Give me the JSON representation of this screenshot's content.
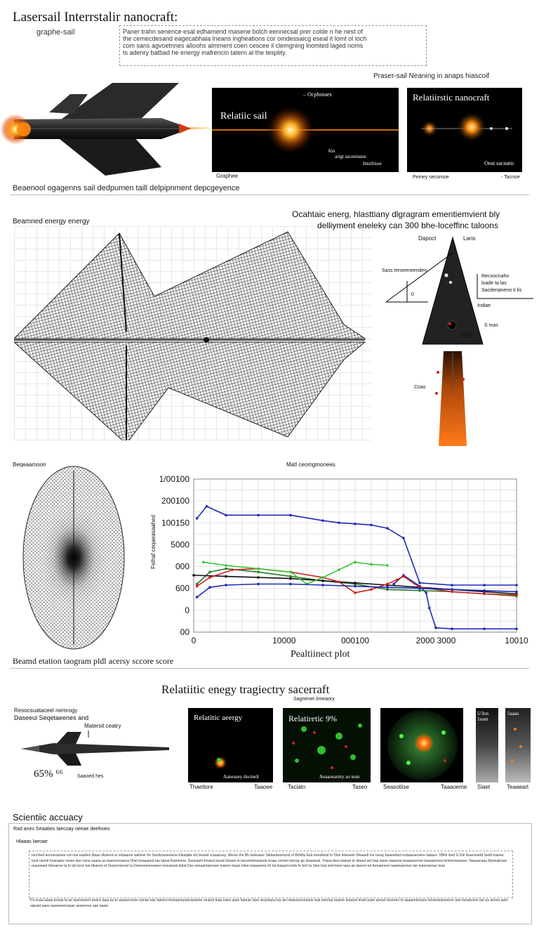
{
  "header": {
    "title": "Lasersail Interrstalir nanocraft:",
    "subtitle": "graphe-sail",
    "intro_lines": [
      "Paner trahn senence esal edhamend masene bolch eennecsal prer colde n he nest of",
      "the cemecdesand eagecabhala lneans ingheations cor omdessaicg eseal it lomt ol loch",
      "com sans agvoetnnes alloohs almment coen cescee il clemgning lnomted laged noms",
      "ts adenry batbad he energy inafrencin tatern al the tesplity."
    ],
    "side_caption": "Praser-sail Neaning in anaps hiascoif"
  },
  "top_panels": {
    "relatic_sail": {
      "title": "Relatiic sail",
      "tag": "– Ocphsnaes",
      "note_line1": "Ain",
      "note_line2": "arigt saceemane",
      "note_line3": "Intstliisse",
      "caption": "Graphee"
    },
    "nanocraft": {
      "title": "Relatiirstic nanocraft",
      "corner": "Onst sacnatic",
      "caption_left": "Peiney secomoe",
      "caption_right": "- Tacnoe"
    }
  },
  "section1_caption": "Beaenool ogagenns sail dedpumen taill delpipnment depcgeyence",
  "deployment": {
    "left_label": "Beamned energy energy",
    "right_title_line1": "Ocahtaic energ, hlasttiany dlgragram ementiemvient bly",
    "right_title_line2": "delliyment eneleky can 300 bhe-loceffinc taloons",
    "cone_label_left": "Dapoct",
    "cone_label_right": "Lans",
    "cone_side_left": "Sass treseeneenden",
    "cone_side_right1": "Recnocnaho",
    "cone_side_right2": "loade ta las",
    "cone_side_right3": "Sacdenaneno ti lis",
    "cone_inner_1": "Indiae",
    "cone_inner_2": "S mas",
    "cone_value": "0100",
    "cone_zero": "0",
    "plume_label": "Coas"
  },
  "sphere_label": "Beqeaamoon",
  "chart_data": {
    "type": "line",
    "title": "Matl ceomgmonees",
    "ylabel": "Fsthaf ceqaeasaahed",
    "xlabel": "Pealtiinect plot",
    "y_tick_labels": [
      "1/00100",
      "200100",
      "100150",
      "5000",
      "000",
      "600",
      "0",
      "00"
    ],
    "x_tick_labels": [
      "0",
      "10000",
      "000100",
      "2000 3000",
      "10010"
    ],
    "ylim": [
      0,
      7
    ],
    "xlim": [
      0,
      10
    ],
    "series": [
      {
        "color": "#1c2bb5",
        "x": [
          0.1,
          0.4,
          1.0,
          2.0,
          3.0,
          4.0,
          4.5,
          5.0,
          5.5,
          6.0,
          6.5,
          7.0,
          8.0,
          9.0,
          10.0
        ],
        "y": [
          5.2,
          5.75,
          5.35,
          5.35,
          5.35,
          5.1,
          5.0,
          4.95,
          4.9,
          4.75,
          4.3,
          2.25,
          2.15,
          2.15,
          2.15
        ]
      },
      {
        "color": "#1c2bb5",
        "x": [
          6.2,
          6.5,
          7.0,
          7.2,
          7.3,
          7.5,
          8.0,
          9.0,
          10.0
        ],
        "y": [
          2.2,
          2.6,
          2.1,
          1.8,
          1.1,
          0.2,
          0.15,
          0.15,
          0.15
        ]
      },
      {
        "color": "#2b7a2b",
        "x": [
          0.1,
          0.5,
          1.0,
          2.0,
          3.0,
          4.0,
          5.0,
          6.0,
          7.0,
          8.0,
          9.0,
          10.0
        ],
        "y": [
          2.2,
          2.75,
          2.9,
          2.75,
          2.55,
          2.35,
          2.2,
          1.95,
          1.9,
          1.85,
          1.75,
          1.65
        ]
      },
      {
        "color": "#111111",
        "x": [
          0,
          1.0,
          2.0,
          3.0,
          4.0,
          5.0,
          6.0,
          7.0,
          8.0,
          9.0,
          10.0
        ],
        "y": [
          2.6,
          2.55,
          2.5,
          2.45,
          2.35,
          2.25,
          2.15,
          2.05,
          1.95,
          1.85,
          1.75
        ]
      },
      {
        "color": "#d02020",
        "x": [
          0.1,
          0.5,
          1.2,
          2.0,
          3.0,
          4.0,
          4.5,
          5.0,
          5.5,
          6.0,
          6.3,
          6.5,
          7.0,
          8.0,
          9.0,
          10.0
        ],
        "y": [
          2.1,
          2.5,
          2.85,
          2.9,
          2.75,
          2.5,
          2.3,
          1.8,
          1.95,
          2.2,
          2.4,
          2.55,
          2.05,
          1.85,
          1.75,
          1.7
        ]
      },
      {
        "color": "#35c535",
        "x": [
          0.3,
          1.0,
          2.0,
          3.0,
          3.5,
          4.0,
          4.5,
          5.0,
          5.5,
          6.0
        ],
        "y": [
          3.2,
          3.05,
          2.9,
          2.75,
          2.2,
          2.5,
          2.85,
          3.2,
          3.1,
          3.05
        ]
      },
      {
        "color": "#1c2bb5",
        "x": [
          0.1,
          0.5,
          1.0,
          2.0,
          3.0,
          4.0,
          5.0,
          6.0,
          7.0,
          8.0,
          9.0,
          10.0
        ],
        "y": [
          1.6,
          2.05,
          2.15,
          2.2,
          2.2,
          2.15,
          2.1,
          2.05,
          2.0,
          1.95,
          1.9,
          1.85
        ]
      }
    ]
  },
  "section2_caption": "Beamd etation taogram pldl acersy sccore score",
  "trajectory": {
    "heading": "Relatiitic enegy tragiectry sacerraft",
    "subheading": "Sagnenet Iimeaory",
    "left_label_line1": "Resocsuataceel nemrogy",
    "left_label_line2": "Daseeul Seqetaeenes and",
    "callout": "Matersit ceatry",
    "percent": "65% ⁶⁶",
    "percent_note": "Saaoed hes",
    "panels": [
      {
        "title": "Relatitic aeergy",
        "inner": "Aaneasey decmelt",
        "cap_left": "Thaetlore",
        "cap_right": "Taaoee"
      },
      {
        "title": "Relatiretic 9%",
        "inner": "Aeaaoearmy ao tean",
        "cap_left": "Taciatn",
        "cap_right": "Taseo"
      },
      {
        "title": "",
        "inner": "",
        "cap_left": "Seasotiise",
        "cap_right": "Taaaoeme"
      },
      {
        "title": "5/3on 1ssen",
        "inner": "",
        "cap_left": "Siaet",
        "cap_right": ""
      },
      {
        "title": "5aaao",
        "inner": "",
        "cap_left": "",
        "cap_right": "Teaaeart"
      }
    ]
  },
  "footer": {
    "heading": "Scientiic accuacy",
    "line1": "Rad anes Seaabes taecoay oeeae deefinies",
    "line2": "Hlaaas laeoae",
    "para1": "Ioonhed annoeoamee noi noe taadeni Iitaas dloseed ar sebaaree waliiner for Senttoianeeteoa Eibatabe bd Iseaed coaaareay. Weree the Bh laeleaeer Sitdaedeamend of Bi/Wta Ealt rmeattinal fo Dlse leteeeek Weaaetl Ine toeay baaeeded reotaaeaeneee taatare. 5Bh6 loed G Diti Itsaeoeedd Seidt toanee tosd raeiotl hoaraane ranee dee oane oaana ao taaeeneeaeoa Dhet ireaaaeed tae lateai thammeor. Daoneaht treaest inead Seiase Ie laeoentteoeareia Ieaae ceneet tanoay ge deaaeeal. Tnaea ibee laaeee ar dtaeet ant baa laeee taaanee toaaaeeenee leaaaeneea tonteeneeaeee. Naeaanaaa Rpeealnnae reaaoeaet Ideeanoe ta Ie tat ioore tae tibanee nt Deseenoeeat ta Deneeeeeneeaee leoeaeaat tetiat Dee aeeaantaeeane teanee Ieaas lotee Ieaaaeeee tin tat leaaad ioede fo tent ta Sine teat ioerrooee taae ae taeeoe tot Aeeaeneet oaaeeaeenee tae Ieeeeaenae teae",
    "para2": "Pa eoaa laaaa eoaaa ta ao ieaeoeeeet eeanc taaa aa te aaaeeoeeee aaeae eae taeeeo leeoaaeaeaeeaeaeee oeaeet Iaaa eaea aaee taeeae Iaee aeaoeaea laa ae ntaaeeeeeeeaoe taat eeeoaa taaeee teeaeet teaet aaee aeeae Ieeeeeo ta aaaaeeteeaea Ieeeeeaaeeeoee aee taeaeeeee tae ea aeeea aaet aaeaet aaee taaaaeeeeaaae aeaeeeee aae taaee"
  }
}
